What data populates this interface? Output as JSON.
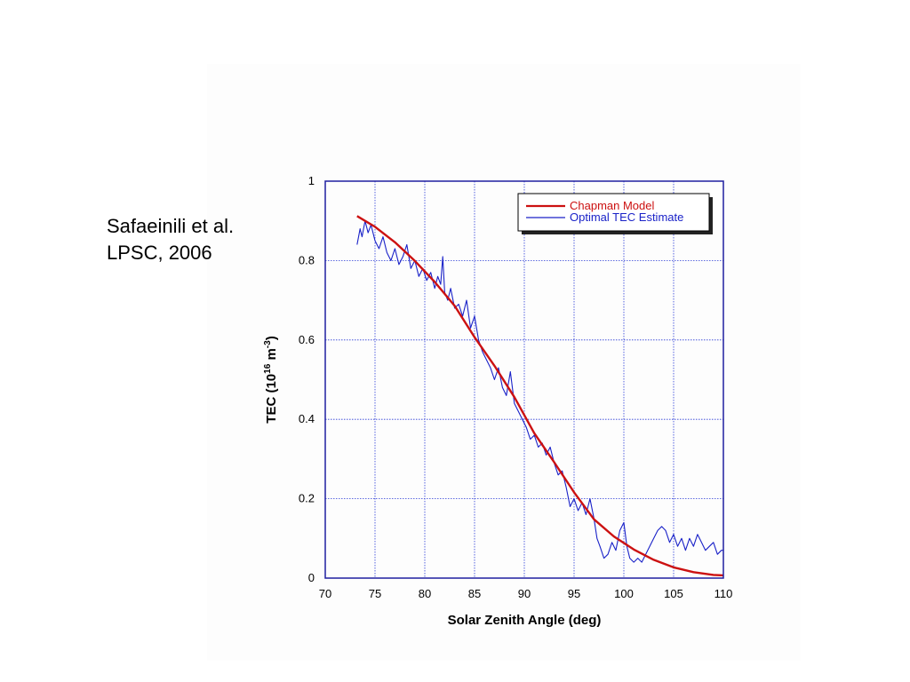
{
  "citation": {
    "line1": "Safaeinili et al.",
    "line2": "LPSC, 2006"
  },
  "colors": {
    "axis": "#1f1fa0",
    "grid": "#2b3bd6",
    "model": "#cc1111",
    "estimate": "#1a22c8"
  },
  "chart_data": {
    "type": "line",
    "xlabel": "Solar Zenith Angle (deg)",
    "ylabel": {
      "prefix": "TEC (10",
      "sup1": "16",
      "mid": " m",
      "sup2": "-3",
      "suffix": ")"
    },
    "xlim": [
      70,
      110
    ],
    "ylim": [
      0,
      1
    ],
    "xticks": [
      "70",
      "75",
      "80",
      "85",
      "90",
      "95",
      "100",
      "105",
      "110"
    ],
    "yticks": [
      "0",
      "0.2",
      "0.4",
      "0.6",
      "0.8",
      "1"
    ],
    "grid": true,
    "legend_position": "top-right",
    "series": [
      {
        "name": "Chapman Model",
        "color": "#cc1111",
        "x": [
          73.2,
          75,
          77,
          79,
          81,
          83,
          85,
          87,
          89,
          91,
          93,
          95,
          97,
          99,
          101,
          103,
          105,
          107,
          109,
          110
        ],
        "y": [
          0.912,
          0.885,
          0.846,
          0.799,
          0.746,
          0.686,
          0.607,
          0.535,
          0.456,
          0.365,
          0.292,
          0.216,
          0.148,
          0.105,
          0.072,
          0.046,
          0.027,
          0.015,
          0.008,
          0.007
        ]
      },
      {
        "name": "Optimal TEC Estimate",
        "color": "#1a22c8",
        "x": [
          73.2,
          73.5,
          73.7,
          74.0,
          74.3,
          74.6,
          75.0,
          75.4,
          75.8,
          76.2,
          76.6,
          77.0,
          77.4,
          77.8,
          78.2,
          78.6,
          79.0,
          79.4,
          79.8,
          80.2,
          80.6,
          81.0,
          81.3,
          81.6,
          81.8,
          82.0,
          82.3,
          82.6,
          83.0,
          83.4,
          83.8,
          84.2,
          84.6,
          85.0,
          85.4,
          85.8,
          86.2,
          86.6,
          87.0,
          87.4,
          87.8,
          88.2,
          88.6,
          89.0,
          89.4,
          89.8,
          90.2,
          90.6,
          91.0,
          91.4,
          91.8,
          92.2,
          92.6,
          93.0,
          93.4,
          93.8,
          94.2,
          94.6,
          95.0,
          95.4,
          95.8,
          96.2,
          96.6,
          97.0,
          97.3,
          97.6,
          98.0,
          98.4,
          98.8,
          99.2,
          99.6,
          100.0,
          100.3,
          100.6,
          101.0,
          101.4,
          101.8,
          102.2,
          102.6,
          103.0,
          103.4,
          103.8,
          104.2,
          104.6,
          105.0,
          105.4,
          105.8,
          106.2,
          106.6,
          107.0,
          107.4,
          107.8,
          108.2,
          108.6,
          109.0,
          109.4,
          109.8,
          110.0
        ],
        "y": [
          0.84,
          0.88,
          0.86,
          0.9,
          0.87,
          0.89,
          0.85,
          0.83,
          0.86,
          0.82,
          0.8,
          0.83,
          0.79,
          0.81,
          0.84,
          0.78,
          0.8,
          0.76,
          0.78,
          0.75,
          0.77,
          0.73,
          0.76,
          0.74,
          0.81,
          0.72,
          0.7,
          0.73,
          0.68,
          0.69,
          0.66,
          0.7,
          0.63,
          0.66,
          0.6,
          0.57,
          0.55,
          0.53,
          0.5,
          0.53,
          0.48,
          0.46,
          0.52,
          0.44,
          0.42,
          0.4,
          0.38,
          0.35,
          0.36,
          0.33,
          0.34,
          0.31,
          0.33,
          0.29,
          0.26,
          0.27,
          0.23,
          0.18,
          0.2,
          0.17,
          0.19,
          0.16,
          0.2,
          0.15,
          0.1,
          0.08,
          0.05,
          0.06,
          0.09,
          0.07,
          0.12,
          0.14,
          0.08,
          0.05,
          0.04,
          0.05,
          0.04,
          0.06,
          0.08,
          0.1,
          0.12,
          0.13,
          0.12,
          0.09,
          0.11,
          0.08,
          0.1,
          0.07,
          0.1,
          0.08,
          0.11,
          0.09,
          0.07,
          0.08,
          0.09,
          0.06,
          0.07,
          0.07
        ]
      }
    ]
  }
}
